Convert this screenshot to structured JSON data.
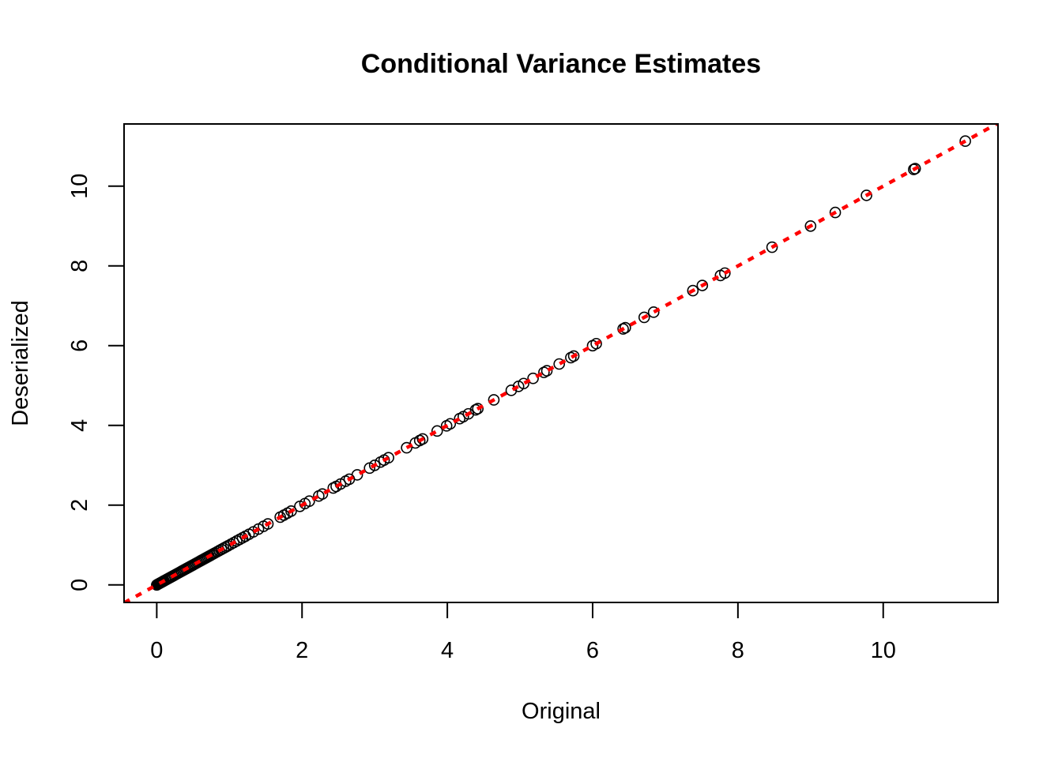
{
  "chart_data": {
    "type": "scatter",
    "title": "Conditional Variance Estimates",
    "xlabel": "Original",
    "ylabel": "Deserialized",
    "xlim": [
      -0.45,
      11.58
    ],
    "ylim": [
      -0.44,
      11.56
    ],
    "x_ticks": [
      0,
      2,
      4,
      6,
      8,
      10
    ],
    "y_ticks": [
      0,
      2,
      4,
      6,
      8,
      10
    ],
    "grid": false,
    "reference_line": {
      "type": "y=x",
      "color": "#ff0000",
      "style": "dotted"
    },
    "point_color": "#000000",
    "x": [
      0.0,
      0.01,
      0.02,
      0.03,
      0.04,
      0.05,
      0.06,
      0.07,
      0.08,
      0.09,
      0.1,
      0.12,
      0.14,
      0.16,
      0.18,
      0.2,
      0.22,
      0.24,
      0.26,
      0.28,
      0.3,
      0.32,
      0.34,
      0.36,
      0.38,
      0.4,
      0.42,
      0.44,
      0.46,
      0.48,
      0.5,
      0.52,
      0.54,
      0.56,
      0.58,
      0.6,
      0.62,
      0.64,
      0.66,
      0.68,
      0.7,
      0.72,
      0.74,
      0.76,
      0.78,
      0.8,
      0.83,
      0.86,
      0.89,
      0.92,
      0.95,
      0.98,
      1.02,
      1.06,
      1.1,
      1.14,
      1.18,
      1.22,
      1.27,
      1.33,
      1.4,
      1.47,
      1.53,
      1.7,
      1.75,
      1.8,
      1.85,
      1.97,
      2.04,
      2.1,
      2.23,
      2.28,
      2.43,
      2.47,
      2.53,
      2.6,
      2.65,
      2.76,
      2.93,
      3.0,
      3.08,
      3.13,
      3.19,
      3.44,
      3.56,
      3.62,
      3.66,
      3.86,
      3.99,
      4.04,
      4.17,
      4.22,
      4.29,
      4.39,
      4.42,
      4.64,
      4.88,
      4.98,
      5.05,
      5.18,
      5.33,
      5.37,
      5.54,
      5.7,
      5.74,
      6.0,
      6.05,
      6.42,
      6.45,
      6.71,
      6.84,
      7.38,
      7.51,
      7.76,
      7.82,
      8.47,
      9.0,
      9.34,
      9.77,
      10.42,
      10.44,
      11.13
    ],
    "y": [
      0.0,
      0.01,
      0.02,
      0.03,
      0.04,
      0.05,
      0.06,
      0.07,
      0.08,
      0.09,
      0.1,
      0.12,
      0.14,
      0.16,
      0.18,
      0.2,
      0.22,
      0.24,
      0.26,
      0.28,
      0.3,
      0.32,
      0.34,
      0.36,
      0.38,
      0.4,
      0.42,
      0.44,
      0.46,
      0.48,
      0.5,
      0.52,
      0.54,
      0.56,
      0.58,
      0.6,
      0.62,
      0.64,
      0.66,
      0.68,
      0.7,
      0.72,
      0.74,
      0.76,
      0.78,
      0.8,
      0.83,
      0.86,
      0.89,
      0.92,
      0.95,
      0.98,
      1.02,
      1.06,
      1.1,
      1.14,
      1.18,
      1.22,
      1.27,
      1.33,
      1.4,
      1.47,
      1.53,
      1.7,
      1.75,
      1.8,
      1.85,
      1.97,
      2.04,
      2.1,
      2.23,
      2.28,
      2.43,
      2.47,
      2.53,
      2.6,
      2.65,
      2.76,
      2.93,
      3.0,
      3.08,
      3.13,
      3.19,
      3.44,
      3.56,
      3.62,
      3.66,
      3.86,
      3.99,
      4.04,
      4.17,
      4.22,
      4.29,
      4.39,
      4.42,
      4.64,
      4.88,
      4.98,
      5.05,
      5.18,
      5.33,
      5.37,
      5.54,
      5.7,
      5.74,
      6.0,
      6.05,
      6.42,
      6.45,
      6.71,
      6.84,
      7.38,
      7.51,
      7.76,
      7.82,
      8.47,
      9.0,
      9.34,
      9.77,
      10.42,
      10.44,
      11.13
    ]
  }
}
